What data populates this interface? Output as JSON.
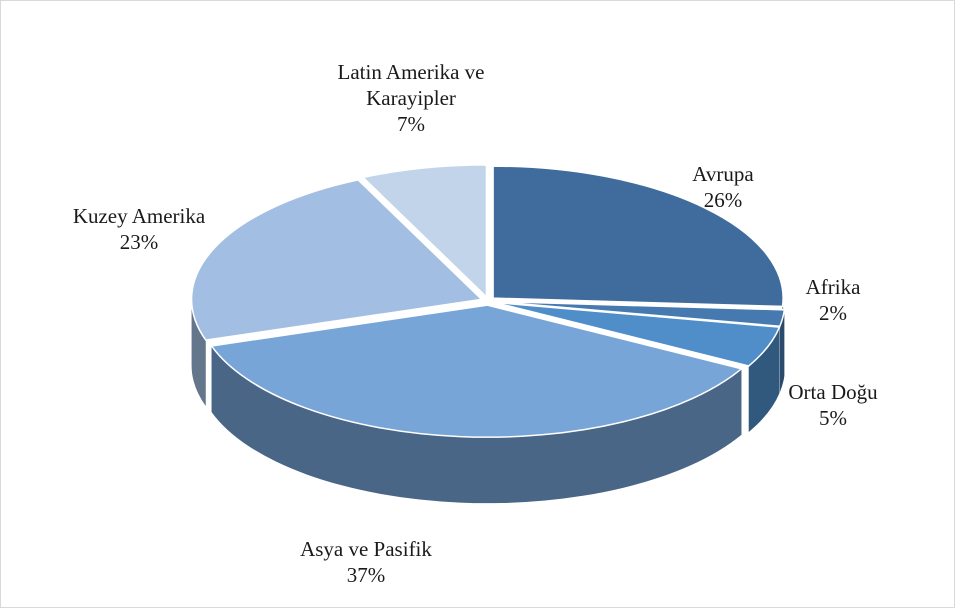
{
  "chart_data": {
    "type": "pie3d",
    "categories": [
      "Avrupa",
      "Afrika",
      "Orta Doğu",
      "Asya ve Pasifik",
      "Kuzey Amerika",
      "Latin Amerika ve Karayipler"
    ],
    "values": [
      26,
      2,
      5,
      37,
      23,
      7
    ],
    "value_labels": [
      "26%",
      "2%",
      "5%",
      "37%",
      "23%",
      "7%"
    ],
    "colors": [
      "#3f6c9c",
      "#4679b0",
      "#4f8ec9",
      "#78a5d8",
      "#a2bee2",
      "#c2d4ea"
    ]
  }
}
